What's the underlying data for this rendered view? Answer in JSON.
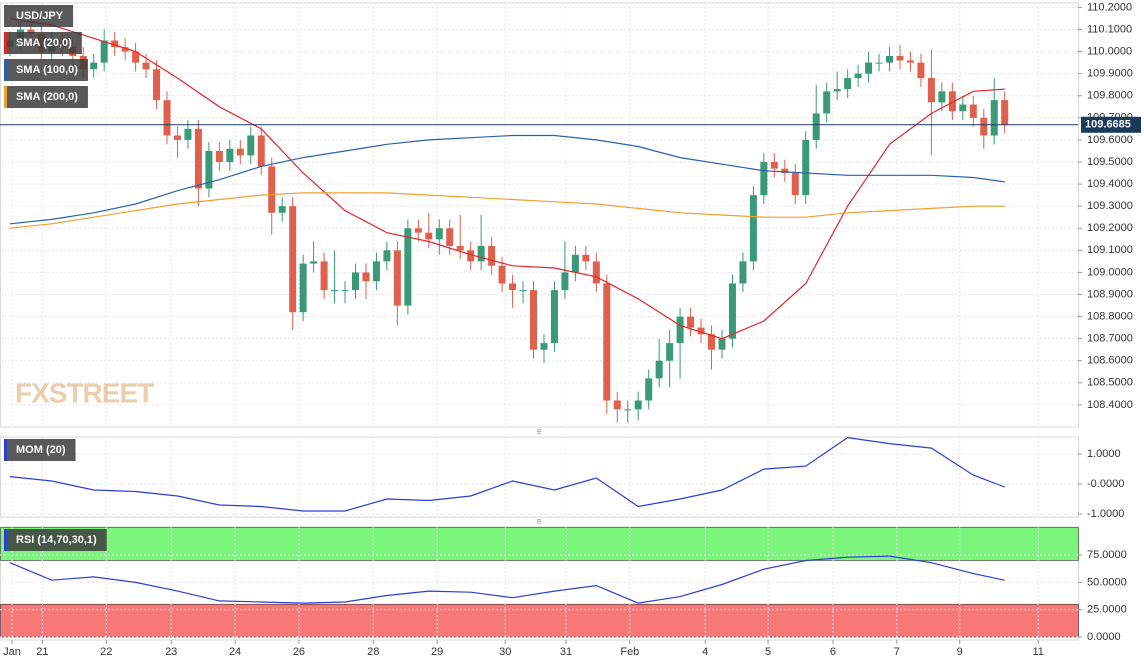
{
  "chart_data": [
    {
      "type": "candlestick",
      "symbol": "USD/JPY",
      "watermark": "FXSTREET",
      "last_price": 109.6685,
      "up_color": "#3a9a78",
      "down_color": "#e0604e",
      "grid": true,
      "xlim": [
        -0.95,
        102
      ],
      "ylim": [
        108.3,
        110.22
      ],
      "xticks": [
        {
          "value": 0.2,
          "label": "Jan"
        },
        {
          "value": 3.1,
          "label": "21"
        },
        {
          "value": 9.2,
          "label": "22"
        },
        {
          "value": 15.4,
          "label": "23"
        },
        {
          "value": 21.5,
          "label": "24"
        },
        {
          "value": 27.6,
          "label": "26"
        },
        {
          "value": 34.7,
          "label": "28"
        },
        {
          "value": 40.8,
          "label": "29"
        },
        {
          "value": 47.3,
          "label": "30"
        },
        {
          "value": 53.1,
          "label": "31"
        },
        {
          "value": 59.2,
          "label": "Feb"
        },
        {
          "value": 66.4,
          "label": "4"
        },
        {
          "value": 72.4,
          "label": "5"
        },
        {
          "value": 78.6,
          "label": "6"
        },
        {
          "value": 84.7,
          "label": "7"
        },
        {
          "value": 90.7,
          "label": "9"
        },
        {
          "value": 98.2,
          "label": "11"
        }
      ],
      "yticks": [
        {
          "value": 110.2,
          "label": "110.2000"
        },
        {
          "value": 110.1,
          "label": "110.1000"
        },
        {
          "value": 110.0,
          "label": "110.0000"
        },
        {
          "value": 109.9,
          "label": "109.9000"
        },
        {
          "value": 109.8,
          "label": "109.8000"
        },
        {
          "value": 109.7,
          "label": "109.7000"
        },
        {
          "value": 109.6,
          "label": "109.6000"
        },
        {
          "value": 109.5,
          "label": "109.5000"
        },
        {
          "value": 109.4,
          "label": "109.4000"
        },
        {
          "value": 109.3,
          "label": "109.3000"
        },
        {
          "value": 109.2,
          "label": "109.2000"
        },
        {
          "value": 109.1,
          "label": "109.1000"
        },
        {
          "value": 109.0,
          "label": "109.0000"
        },
        {
          "value": 108.9,
          "label": "108.9000"
        },
        {
          "value": 108.8,
          "label": "108.8000"
        },
        {
          "value": 108.7,
          "label": "108.7000"
        },
        {
          "value": 108.6,
          "label": "108.6000"
        },
        {
          "value": 108.5,
          "label": "108.5000"
        },
        {
          "value": 108.4,
          "label": "108.4000"
        }
      ],
      "open": [
        110.02,
        110.05,
        110.1,
        110.08,
        110.0,
        110.05,
        110.02,
        109.98,
        109.92,
        109.95,
        110.05,
        110.02,
        110.0,
        109.95,
        109.92,
        109.78,
        109.62,
        109.6,
        109.65,
        109.38,
        109.55,
        109.5,
        109.56,
        109.53,
        109.62,
        109.48,
        109.27,
        109.3,
        108.82,
        109.04,
        109.05,
        108.92,
        108.92,
        108.92,
        109.0,
        108.96,
        109.05,
        109.1,
        108.85,
        109.2,
        109.18,
        109.15,
        109.2,
        109.12,
        109.1,
        109.05,
        109.12,
        109.03,
        108.95,
        108.92,
        108.92,
        108.65,
        108.68,
        108.92,
        109.0,
        109.08,
        109.05,
        108.95,
        108.42,
        108.38,
        108.38,
        108.42,
        108.52,
        108.6,
        108.68,
        108.8,
        108.75,
        108.72,
        108.65,
        108.7,
        108.95,
        109.05,
        109.35,
        109.5,
        109.47,
        109.45,
        109.35,
        109.6,
        109.72,
        109.82,
        109.83,
        109.88,
        109.9,
        109.95,
        109.95,
        109.98,
        109.96,
        109.95,
        109.88,
        109.77,
        109.82,
        109.73,
        109.76,
        109.7,
        109.62,
        109.78
      ],
      "high": [
        110.09,
        110.14,
        110.14,
        110.12,
        110.09,
        110.09,
        110.06,
        110.02,
        109.99,
        110.1,
        110.09,
        110.06,
        110.04,
        109.99,
        109.96,
        109.82,
        109.66,
        109.69,
        109.69,
        109.59,
        109.59,
        109.6,
        109.6,
        109.66,
        109.66,
        109.52,
        109.34,
        109.34,
        109.08,
        109.14,
        109.09,
        109.1,
        108.96,
        109.04,
        109.04,
        109.09,
        109.14,
        109.14,
        109.24,
        109.24,
        109.27,
        109.24,
        109.24,
        109.26,
        109.14,
        109.26,
        109.16,
        109.07,
        108.99,
        108.96,
        108.96,
        108.72,
        108.96,
        109.14,
        109.12,
        109.12,
        109.09,
        108.99,
        108.46,
        108.42,
        108.46,
        108.56,
        108.7,
        108.74,
        108.84,
        108.84,
        108.79,
        108.76,
        108.74,
        108.99,
        109.09,
        109.39,
        109.54,
        109.54,
        109.51,
        109.49,
        109.64,
        109.85,
        109.86,
        109.91,
        109.92,
        109.94,
        110.0,
        109.99,
        110.02,
        110.03,
        110.0,
        109.99,
        110.01,
        109.86,
        109.86,
        109.8,
        109.8,
        109.74,
        109.88,
        109.82
      ],
      "low": [
        109.98,
        110.01,
        110.04,
        109.96,
        109.96,
        109.98,
        109.94,
        109.88,
        109.88,
        109.91,
        109.98,
        109.96,
        109.91,
        109.88,
        109.74,
        109.58,
        109.52,
        109.56,
        109.3,
        109.34,
        109.46,
        109.46,
        109.49,
        109.49,
        109.44,
        109.17,
        109.23,
        108.74,
        108.78,
        109.0,
        108.88,
        108.86,
        108.86,
        108.88,
        108.88,
        108.92,
        109.01,
        108.76,
        108.81,
        109.14,
        109.11,
        109.08,
        109.08,
        109.06,
        109.01,
        109.01,
        108.99,
        108.91,
        108.84,
        108.86,
        108.61,
        108.59,
        108.64,
        108.88,
        108.96,
        109.01,
        108.91,
        108.36,
        108.32,
        108.32,
        108.33,
        108.38,
        108.48,
        108.48,
        108.52,
        108.71,
        108.68,
        108.56,
        108.61,
        108.66,
        108.91,
        109.01,
        109.31,
        109.43,
        109.41,
        109.31,
        109.31,
        109.56,
        109.68,
        109.78,
        109.79,
        109.84,
        109.86,
        109.91,
        109.91,
        109.92,
        109.91,
        109.84,
        109.53,
        109.73,
        109.69,
        109.69,
        109.66,
        109.56,
        109.58,
        109.63
      ],
      "close": [
        110.05,
        110.1,
        110.08,
        110.0,
        110.05,
        110.02,
        109.98,
        109.92,
        109.95,
        110.05,
        110.02,
        110.0,
        109.95,
        109.92,
        109.78,
        109.62,
        109.6,
        109.65,
        109.38,
        109.55,
        109.5,
        109.56,
        109.53,
        109.62,
        109.48,
        109.27,
        109.3,
        108.82,
        109.04,
        109.05,
        108.92,
        108.92,
        108.92,
        109.0,
        108.96,
        109.05,
        109.1,
        108.85,
        109.2,
        109.18,
        109.15,
        109.2,
        109.12,
        109.1,
        109.05,
        109.12,
        109.03,
        108.95,
        108.92,
        108.92,
        108.65,
        108.68,
        108.92,
        109.0,
        109.08,
        109.05,
        108.95,
        108.42,
        108.38,
        108.38,
        108.42,
        108.52,
        108.6,
        108.68,
        108.8,
        108.75,
        108.72,
        108.65,
        108.7,
        108.95,
        109.05,
        109.35,
        109.5,
        109.47,
        109.45,
        109.35,
        109.6,
        109.72,
        109.82,
        109.83,
        109.88,
        109.9,
        109.95,
        109.95,
        109.98,
        109.96,
        109.95,
        109.88,
        109.77,
        109.82,
        109.73,
        109.76,
        109.7,
        109.62,
        109.78,
        109.67
      ],
      "series": [
        {
          "name": "SMA (20,0)",
          "color": "#e8262a",
          "x": [
            0,
            4,
            8,
            12,
            16,
            20,
            24,
            28,
            32,
            36,
            40,
            44,
            48,
            52,
            56,
            60,
            64,
            68,
            72,
            76,
            80,
            84,
            88,
            92,
            95
          ],
          "values": [
            110.15,
            110.12,
            110.06,
            110.0,
            109.88,
            109.75,
            109.65,
            109.45,
            109.28,
            109.18,
            109.14,
            109.08,
            109.03,
            109.02,
            108.98,
            108.88,
            108.76,
            108.7,
            108.78,
            108.95,
            109.3,
            109.58,
            109.72,
            109.82,
            109.83
          ]
        },
        {
          "name": "SMA (100,0)",
          "color": "#2d5fae",
          "x": [
            0,
            4,
            8,
            12,
            16,
            20,
            24,
            28,
            32,
            36,
            40,
            44,
            48,
            52,
            56,
            60,
            64,
            68,
            72,
            76,
            80,
            84,
            88,
            92,
            95
          ],
          "values": [
            109.22,
            109.24,
            109.27,
            109.31,
            109.37,
            109.42,
            109.48,
            109.52,
            109.55,
            109.58,
            109.6,
            109.61,
            109.62,
            109.62,
            109.6,
            109.57,
            109.52,
            109.49,
            109.46,
            109.45,
            109.44,
            109.44,
            109.44,
            109.43,
            109.41
          ]
        },
        {
          "name": "SMA (200,0)",
          "color": "#f0a030",
          "x": [
            0,
            4,
            8,
            12,
            16,
            20,
            24,
            28,
            32,
            36,
            40,
            44,
            48,
            52,
            56,
            60,
            64,
            68,
            72,
            76,
            80,
            84,
            88,
            92,
            95
          ],
          "values": [
            109.2,
            109.22,
            109.25,
            109.28,
            109.31,
            109.33,
            109.35,
            109.36,
            109.36,
            109.36,
            109.35,
            109.34,
            109.33,
            109.32,
            109.31,
            109.29,
            109.27,
            109.26,
            109.25,
            109.25,
            109.27,
            109.28,
            109.29,
            109.3,
            109.3
          ]
        }
      ]
    },
    {
      "type": "line",
      "grid": true,
      "ylim": [
        -1.1,
        1.57
      ],
      "yticks": [
        {
          "value": 1,
          "label": "1.0000"
        },
        {
          "value": 0,
          "label": "-0.0000"
        },
        {
          "value": -1,
          "label": "-1.0000"
        }
      ],
      "series": [
        {
          "name": "MOM (20)",
          "color": "#2a3fd6",
          "x": [
            0,
            4,
            8,
            12,
            16,
            20,
            24,
            28,
            32,
            36,
            40,
            44,
            48,
            52,
            56,
            60,
            64,
            68,
            72,
            76,
            80,
            84,
            88,
            92,
            95
          ],
          "values": [
            0.25,
            0.1,
            -0.2,
            -0.25,
            -0.4,
            -0.7,
            -0.75,
            -0.9,
            -0.9,
            -0.5,
            -0.55,
            -0.4,
            0.1,
            -0.2,
            0.2,
            -0.75,
            -0.5,
            -0.2,
            0.5,
            0.6,
            1.55,
            1.35,
            1.2,
            0.3,
            -0.1
          ]
        }
      ]
    },
    {
      "type": "line",
      "grid": true,
      "ylim": [
        -2.7,
        100.6
      ],
      "yticks": [
        {
          "value": 75,
          "label": "75.0000"
        },
        {
          "value": 50,
          "label": "50.0000"
        },
        {
          "value": 25,
          "label": "25.0000"
        },
        {
          "value": 0,
          "label": "0.0000"
        }
      ],
      "bands": [
        {
          "from": 70,
          "to": 100,
          "color": "#7cf57c"
        },
        {
          "from": 0,
          "to": 30,
          "color": "#f87878"
        }
      ],
      "series": [
        {
          "name": "RSI (14,70,30,1)",
          "color": "#2a3fd6",
          "x": [
            0,
            4,
            8,
            12,
            16,
            20,
            24,
            28,
            32,
            36,
            40,
            44,
            48,
            52,
            56,
            60,
            64,
            68,
            72,
            76,
            80,
            84,
            88,
            92,
            95
          ],
          "values": [
            68,
            52,
            55,
            50,
            42,
            33,
            32,
            31,
            32,
            38,
            42,
            41,
            36,
            42,
            47,
            31,
            37,
            48,
            62,
            70,
            73,
            74,
            68,
            58,
            52
          ]
        }
      ]
    }
  ]
}
